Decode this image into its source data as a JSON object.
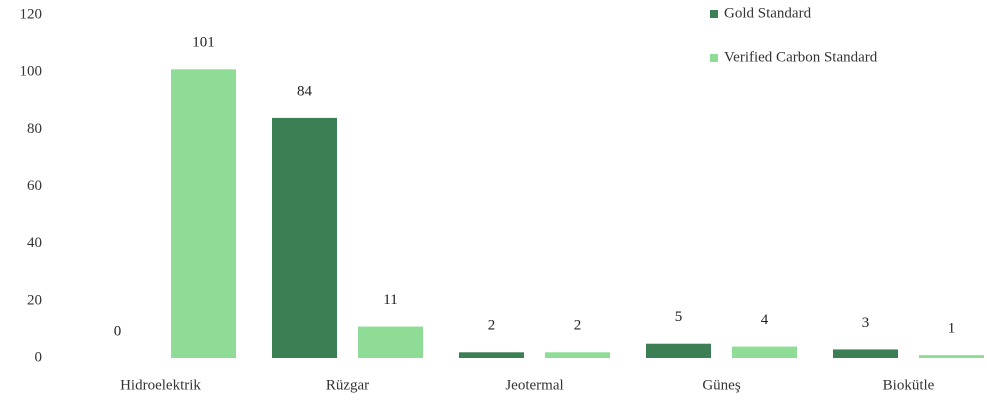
{
  "chart_data": {
    "type": "bar",
    "categories": [
      "Hidroelektrik",
      "Rüzgar",
      "Jeotermal",
      "Güneş",
      "Biokütle"
    ],
    "series": [
      {
        "name": "Gold Standard",
        "color": "#3c7f55",
        "values": [
          0,
          84,
          2,
          5,
          3
        ]
      },
      {
        "name": "Verified Carbon Standard",
        "color": "#8edc96",
        "values": [
          101,
          11,
          2,
          4,
          1
        ]
      }
    ],
    "ylim": [
      0,
      120
    ],
    "yticks": [
      0,
      20,
      40,
      60,
      80,
      100,
      120
    ],
    "grid": false,
    "legend": "top-right"
  }
}
